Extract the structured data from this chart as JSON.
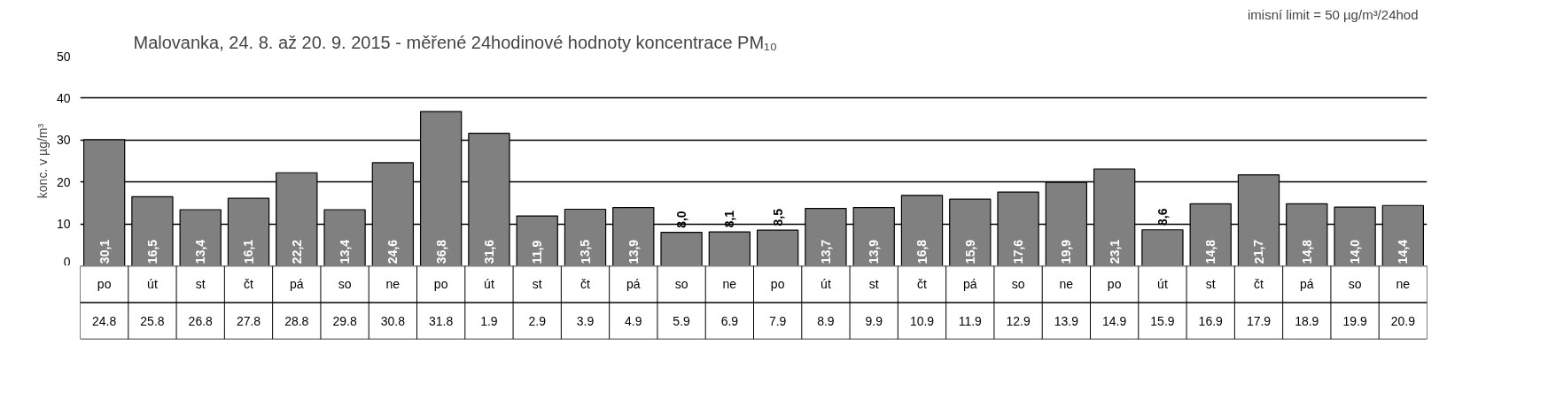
{
  "chart_data": {
    "type": "bar",
    "title": "Malovanka, 24. 8. až 20. 9. 2015 - měřené 24hodinové hodnoty koncentrace PM₁₀",
    "ylabel": "konc. v µg/m³",
    "annotations": [
      "imisní limit = 50 µg/m³/24hod"
    ],
    "categories": [
      "po\n24.8",
      "út\n25.8",
      "st\n26.8",
      "čt\n27.8",
      "pá\n28.8",
      "so\n29.8",
      "ne\n30.8",
      "po\n31.8",
      "út\n1.9",
      "st\n2.9",
      "čt\n3.9",
      "pá\n4.9",
      "so\n5.9",
      "ne\n6.9",
      "po\n7.9",
      "út\n8.9",
      "st\n9.9",
      "čt\n10.9",
      "pá\n11.9",
      "so\n12.9",
      "ne\n13.9",
      "po\n14.9",
      "út\n15.9",
      "st\n16.9",
      "čt\n17.9",
      "pá\n18.9",
      "so\n19.9",
      "ne\n20.9"
    ],
    "values": [
      30.1,
      16.5,
      13.4,
      16.1,
      22.2,
      13.4,
      24.6,
      36.8,
      31.6,
      11.9,
      13.5,
      13.9,
      8.0,
      8.1,
      8.5,
      13.7,
      13.9,
      16.8,
      15.9,
      17.6,
      19.9,
      23.1,
      8.6,
      14.8,
      21.7,
      14.8,
      14.0,
      14.4
    ],
    "value_labels": [
      "30,1",
      "16,5",
      "13,4",
      "16,1",
      "22,2",
      "13,4",
      "24,6",
      "36,8",
      "31,6",
      "11,9",
      "13,5",
      "13,9",
      "8,0",
      "8,1",
      "8,5",
      "13,7",
      "13,9",
      "16,8",
      "15,9",
      "17,6",
      "19,9",
      "23,1",
      "8,6",
      "14,8",
      "21,7",
      "14,8",
      "14,0",
      "14,4"
    ],
    "color": "#808080",
    "ylim": [
      0,
      50
    ],
    "yticks": [
      0,
      10,
      20,
      30,
      40,
      50
    ],
    "grid": "y"
  }
}
